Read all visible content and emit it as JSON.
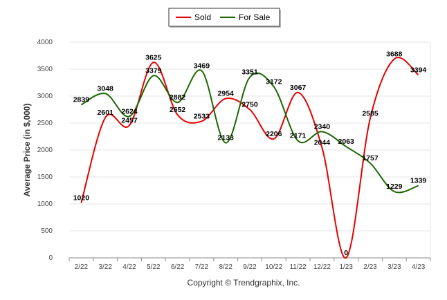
{
  "chart_data": {
    "type": "line",
    "categories": [
      "2/22",
      "3/22",
      "4/22",
      "5/22",
      "6/22",
      "7/22",
      "8/22",
      "9/22",
      "10/22",
      "11/22",
      "12/22",
      "1/23",
      "2/23",
      "3/23",
      "4/23"
    ],
    "series": [
      {
        "name": "Sold",
        "color": "#e60000",
        "values": [
          1020,
          2601,
          2457,
          3625,
          2652,
          2533,
          2954,
          2750,
          2206,
          3067,
          2044,
          0,
          2585,
          3688,
          3394
        ]
      },
      {
        "name": "For Sale",
        "color": "#1a6600",
        "values": [
          2839,
          3048,
          2624,
          3379,
          2882,
          3469,
          2133,
          3351,
          3172,
          2171,
          2340,
          2063,
          1757,
          1229,
          1339
        ]
      }
    ],
    "ylabel": "Average Price (in $,000)",
    "ylim": [
      0,
      4000
    ],
    "yticks": [
      0,
      500,
      1000,
      1500,
      2000,
      2500,
      3000,
      3500,
      4000
    ],
    "grid": true,
    "legend_position": "top-center"
  },
  "footer": "Copyright © Trendgraphix, Inc."
}
